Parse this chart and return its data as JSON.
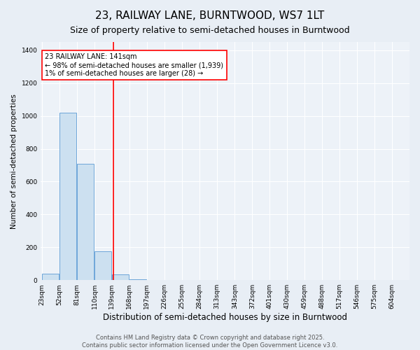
{
  "title1": "23, RAILWAY LANE, BURNTWOOD, WS7 1LT",
  "title2": "Size of property relative to semi-detached houses in Burntwood",
  "xlabel": "Distribution of semi-detached houses by size in Burntwood",
  "ylabel": "Number of semi-detached properties",
  "bar_values": [
    40,
    1020,
    710,
    175,
    35,
    7,
    0,
    0,
    0,
    0,
    0,
    0,
    0,
    0,
    0,
    0,
    0,
    0,
    0,
    0
  ],
  "bin_labels": [
    "23sqm",
    "52sqm",
    "81sqm",
    "110sqm",
    "139sqm",
    "168sqm",
    "197sqm",
    "226sqm",
    "255sqm",
    "284sqm",
    "313sqm",
    "343sqm",
    "372sqm",
    "401sqm",
    "430sqm",
    "459sqm",
    "488sqm",
    "517sqm",
    "546sqm",
    "575sqm",
    "604sqm"
  ],
  "bin_edges": [
    23,
    52,
    81,
    110,
    139,
    168,
    197,
    226,
    255,
    284,
    313,
    343,
    372,
    401,
    430,
    459,
    488,
    517,
    546,
    575,
    604
  ],
  "bar_color": "#cce0f0",
  "bar_edge_color": "#5b9bd5",
  "vline_x": 141,
  "vline_color": "red",
  "annotation_line1": "23 RAILWAY LANE: 141sqm",
  "annotation_line2": "← 98% of semi-detached houses are smaller (1,939)",
  "annotation_line3": "1% of semi-detached houses are larger (28) →",
  "annotation_box_color": "white",
  "annotation_box_edge_color": "red",
  "ylim": [
    0,
    1450
  ],
  "yticks": [
    0,
    200,
    400,
    600,
    800,
    1000,
    1200,
    1400
  ],
  "background_color": "#e8eef5",
  "plot_background": "#edf2f8",
  "grid_color": "white",
  "footer_text": "Contains HM Land Registry data © Crown copyright and database right 2025.\nContains public sector information licensed under the Open Government Licence v3.0.",
  "title1_fontsize": 11,
  "title2_fontsize": 9,
  "xlabel_fontsize": 8.5,
  "ylabel_fontsize": 7.5,
  "tick_fontsize": 6.5,
  "annotation_fontsize": 7,
  "footer_fontsize": 6
}
